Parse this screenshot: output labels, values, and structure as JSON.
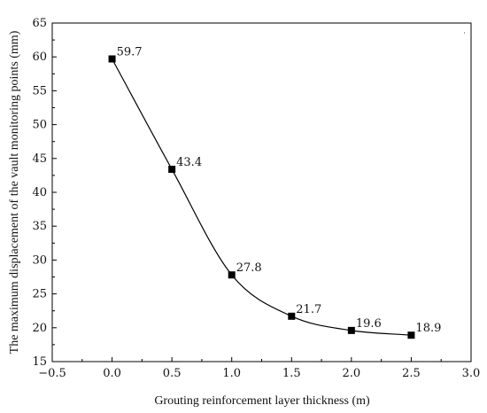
{
  "chart_data": {
    "type": "line",
    "xlabel": "Grouting reinforcement layer thickness (m)",
    "ylabel": "The maximum displacement of the vault monitoring points (mm)",
    "xlim": [
      -0.5,
      3.0
    ],
    "ylim": [
      15,
      65
    ],
    "x_ticks": [
      "−0.5",
      "0.0",
      "0.5",
      "1.0",
      "1.5",
      "2.0",
      "2.5",
      "3.0"
    ],
    "y_ticks": [
      "15",
      "20",
      "25",
      "30",
      "35",
      "40",
      "45",
      "50",
      "55",
      "60",
      "65"
    ],
    "grid": false,
    "marker": "square",
    "smooth": true,
    "series": [
      {
        "x": [
          0.0,
          0.5,
          1.0,
          1.5,
          2.0,
          2.5
        ],
        "values": [
          59.7,
          43.4,
          27.8,
          21.7,
          19.6,
          18.9
        ],
        "labels": [
          "59.7",
          "43.4",
          "27.8",
          "21.7",
          "19.6",
          "18.9"
        ],
        "color": "#000000"
      }
    ],
    "stray_mark": "˙"
  }
}
